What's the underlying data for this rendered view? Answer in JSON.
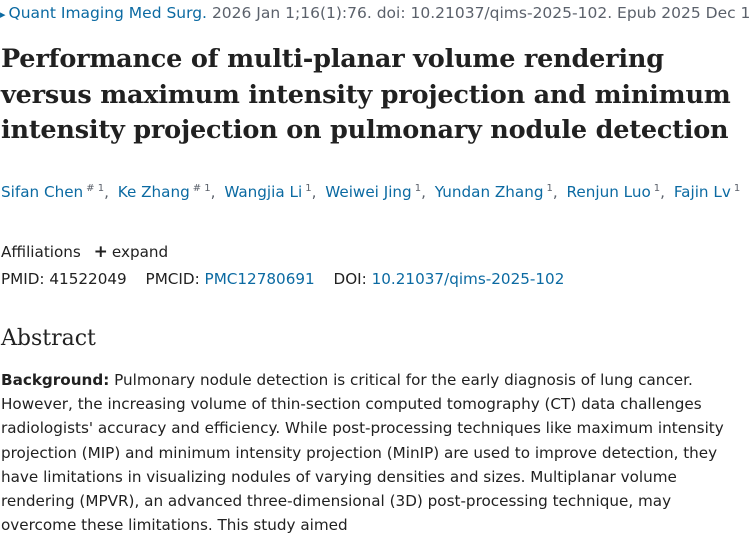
{
  "citation": {
    "journal": "Quant Imaging Med Surg.",
    "details": "2026 Jan 1;16(1):76. doi: 10.21037/qims-2025-102. Epub 2025 Dec 11."
  },
  "title": "Performance of multi-planar volume rendering versus maximum intensity projection and minimum intensity projection on pulmonary nodule detection",
  "authors": [
    {
      "name": "Sifan Chen",
      "sup": "# 1"
    },
    {
      "name": "Ke Zhang",
      "sup": "# 1"
    },
    {
      "name": "Wangjia Li",
      "sup": "1"
    },
    {
      "name": "Weiwei Jing",
      "sup": "1"
    },
    {
      "name": "Yundan Zhang",
      "sup": "1"
    },
    {
      "name": "Renjun Luo",
      "sup": "1"
    },
    {
      "name": "Fajin Lv",
      "sup": "1"
    }
  ],
  "affiliations": {
    "label": "Affiliations",
    "expand_label": "expand"
  },
  "ids": {
    "pmid_label": "PMID:",
    "pmid": "41522049",
    "pmcid_label": "PMCID:",
    "pmcid": "PMC12780691",
    "doi_label": "DOI:",
    "doi": "10.21037/qims-2025-102"
  },
  "abstract": {
    "heading": "Abstract",
    "background_label": "Background:",
    "background_text": "Pulmonary nodule detection is critical for the early diagnosis of lung cancer. However, the increasing volume of thin-section computed tomography (CT) data challenges radiologists' accuracy and efficiency. While post-processing techniques like maximum intensity projection (MIP) and minimum intensity projection (MinIP) are used to improve detection, they have limitations in visualizing nodules of varying densities and sizes. Multiplanar volume rendering (MPVR), an advanced three-dimensional (3D) post-processing technique, may overcome these limitations. This study aimed"
  },
  "colors": {
    "link": "#0b6aa2",
    "text": "#212121",
    "muted": "#5b616b"
  }
}
